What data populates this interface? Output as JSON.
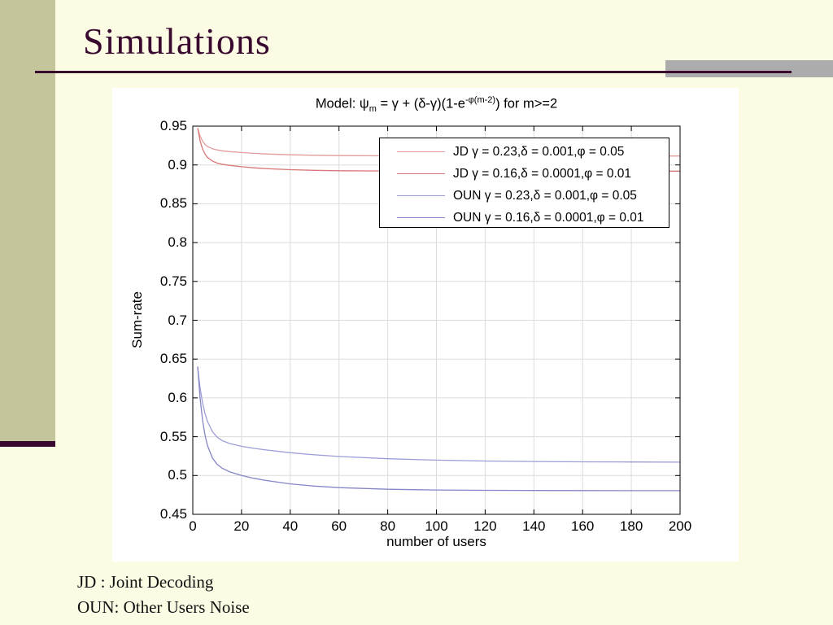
{
  "slide": {
    "title": "Simulations",
    "footnotes": [
      "JD : Joint Decoding",
      "OUN: Other Users Noise"
    ]
  },
  "colors": {
    "background": "#FCFCE4",
    "sidebar": "#C5C59B",
    "accent": "#38082F",
    "gray_bar": "#ACACAC",
    "grid": "#DCDCDC",
    "jd_light": "#E39C9C",
    "jd_dark": "#D87878",
    "oun_light": "#9C9CD8",
    "oun_dark": "#8585C8"
  },
  "chart_data": {
    "type": "line",
    "title": {
      "p1": "Model: ψ",
      "sub1": "m",
      "p2": " = γ + (δ-γ)(1-e",
      "sup1": "-φ(m-2)",
      "p3": ") for m>=2"
    },
    "title_plain": "Model: ψm = γ + (δ-γ)(1-e-φ(m-2)) for m>=2",
    "xlabel": "number of users",
    "ylabel": "Sum-rate",
    "xlim": [
      0,
      200
    ],
    "ylim": [
      0.45,
      0.95
    ],
    "xticks": [
      "0",
      "20",
      "40",
      "60",
      "80",
      "100",
      "120",
      "140",
      "160",
      "180",
      "200"
    ],
    "yticks": [
      "0.45",
      "0.5",
      "0.55",
      "0.6",
      "0.65",
      "0.7",
      "0.75",
      "0.8",
      "0.85",
      "0.9",
      "0.95"
    ],
    "grid": true,
    "legend_position": "upper right",
    "series": [
      {
        "name": "JD γ = 0.23,δ = 0.001,φ = 0.05",
        "color": "#E39C9C",
        "points": [
          [
            2,
            0.9475
          ],
          [
            3,
            0.9371
          ],
          [
            4,
            0.9307
          ],
          [
            5,
            0.9265
          ],
          [
            6,
            0.9239
          ],
          [
            8,
            0.9209
          ],
          [
            10,
            0.9194
          ],
          [
            12,
            0.9182
          ],
          [
            15,
            0.9172
          ],
          [
            20,
            0.916
          ],
          [
            25,
            0.915
          ],
          [
            30,
            0.9142
          ],
          [
            40,
            0.9131
          ],
          [
            50,
            0.9125
          ],
          [
            60,
            0.9121
          ],
          [
            80,
            0.9117
          ],
          [
            100,
            0.9116
          ],
          [
            120,
            0.9115
          ],
          [
            140,
            0.9115
          ],
          [
            160,
            0.9115
          ],
          [
            180,
            0.9115
          ],
          [
            200,
            0.9115
          ]
        ]
      },
      {
        "name": "JD γ = 0.16,δ = 0.0001,φ = 0.01",
        "color": "#D87878",
        "points": [
          [
            2,
            0.9475
          ],
          [
            3,
            0.9309
          ],
          [
            4,
            0.9206
          ],
          [
            5,
            0.914
          ],
          [
            6,
            0.9098
          ],
          [
            8,
            0.9051
          ],
          [
            10,
            0.9024
          ],
          [
            12,
            0.9009
          ],
          [
            15,
            0.8995
          ],
          [
            20,
            0.8977
          ],
          [
            25,
            0.8963
          ],
          [
            30,
            0.8953
          ],
          [
            40,
            0.8939
          ],
          [
            50,
            0.8931
          ],
          [
            60,
            0.8926
          ],
          [
            80,
            0.8922
          ],
          [
            100,
            0.8921
          ],
          [
            120,
            0.892
          ],
          [
            140,
            0.892
          ],
          [
            160,
            0.892
          ],
          [
            180,
            0.892
          ],
          [
            200,
            0.892
          ]
        ]
      },
      {
        "name": "OUN γ = 0.23,δ = 0.001,φ = 0.05",
        "color": "#9C9CD8",
        "points": [
          [
            2,
            0.639
          ],
          [
            3,
            0.6127
          ],
          [
            4,
            0.5936
          ],
          [
            5,
            0.5798
          ],
          [
            6,
            0.5697
          ],
          [
            8,
            0.5567
          ],
          [
            10,
            0.5494
          ],
          [
            12,
            0.5451
          ],
          [
            15,
            0.5413
          ],
          [
            20,
            0.5376
          ],
          [
            25,
            0.535
          ],
          [
            30,
            0.5329
          ],
          [
            40,
            0.5294
          ],
          [
            50,
            0.5266
          ],
          [
            60,
            0.5245
          ],
          [
            80,
            0.5216
          ],
          [
            100,
            0.5198
          ],
          [
            120,
            0.5187
          ],
          [
            140,
            0.518
          ],
          [
            160,
            0.5176
          ],
          [
            180,
            0.5174
          ],
          [
            200,
            0.5172
          ]
        ]
      },
      {
        "name": "OUN γ = 0.16,δ = 0.0001,φ = 0.01",
        "color": "#8585C8",
        "points": [
          [
            2,
            0.6405
          ],
          [
            3,
            0.5994
          ],
          [
            4,
            0.5714
          ],
          [
            5,
            0.5521
          ],
          [
            6,
            0.5388
          ],
          [
            8,
            0.5228
          ],
          [
            10,
            0.5145
          ],
          [
            12,
            0.5095
          ],
          [
            15,
            0.5049
          ],
          [
            20,
            0.5
          ],
          [
            25,
            0.4964
          ],
          [
            30,
            0.4936
          ],
          [
            40,
            0.4892
          ],
          [
            50,
            0.4864
          ],
          [
            60,
            0.4844
          ],
          [
            80,
            0.4823
          ],
          [
            100,
            0.4813
          ],
          [
            120,
            0.4809
          ],
          [
            140,
            0.4807
          ],
          [
            160,
            0.4806
          ],
          [
            180,
            0.4805
          ],
          [
            200,
            0.4805
          ]
        ]
      }
    ]
  }
}
